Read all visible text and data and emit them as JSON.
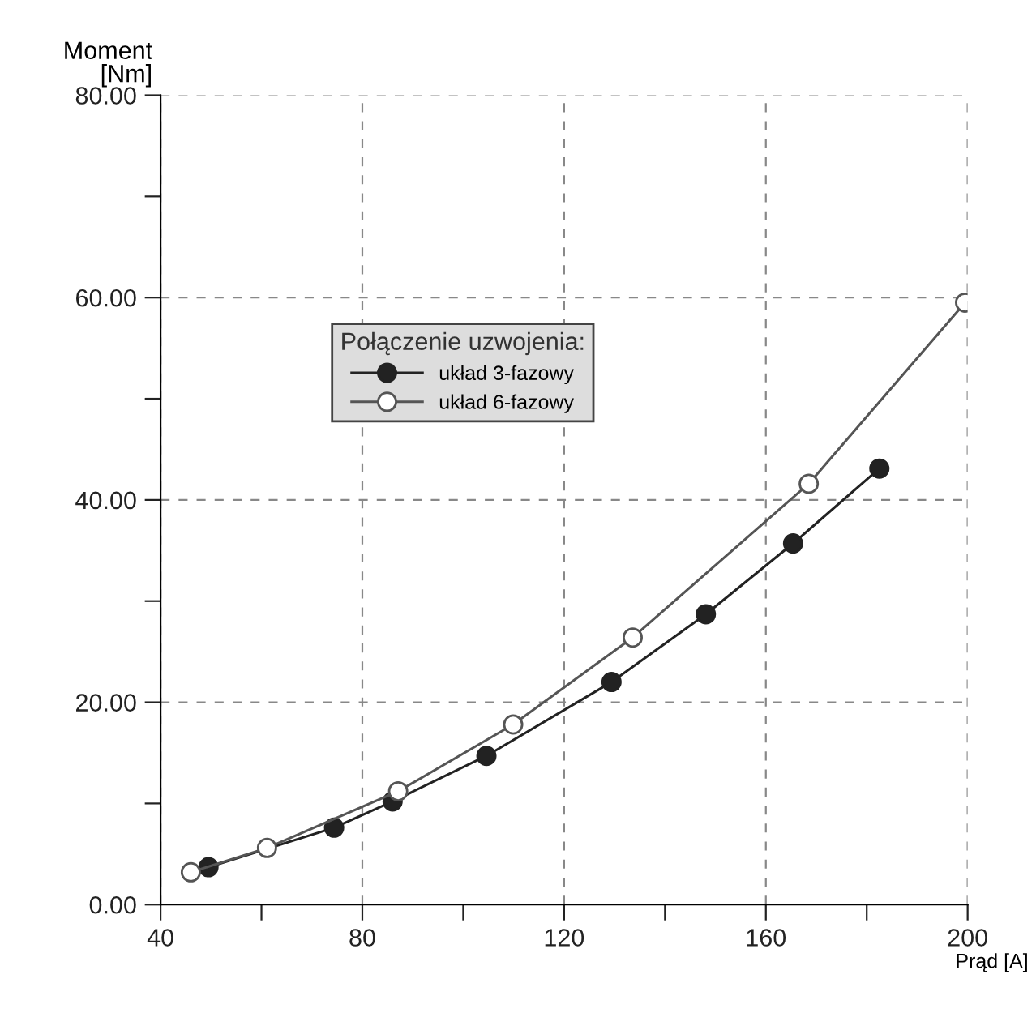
{
  "chart_data": {
    "type": "line",
    "xlabel": "Prąd [A]",
    "ylabel": "Moment\n[Nm]",
    "legend_title": "Połączenie uzwojenia:",
    "series": [
      {
        "name": "układ 3-fazowy",
        "color": "#222222",
        "x": [
          49.5,
          74.4,
          86.0,
          104.6,
          129.4,
          148.1,
          165.4,
          182.5
        ],
        "values": [
          3.7,
          7.6,
          10.2,
          14.7,
          22.0,
          28.7,
          35.7,
          43.1
        ]
      },
      {
        "name": "układ 6-fazowy",
        "color": "#555555",
        "x": [
          46.0,
          61.1,
          87.1,
          109.9,
          133.6,
          168.5,
          199.5
        ],
        "values": [
          3.2,
          5.6,
          11.2,
          17.8,
          26.4,
          41.6,
          59.5
        ]
      }
    ],
    "xlim": [
      40,
      200
    ],
    "ylim": [
      0,
      80
    ],
    "xticks": [
      40,
      {
        "value": 60,
        "label": null
      },
      80,
      {
        "value": 100,
        "label": null
      },
      120,
      {
        "value": 140,
        "label": null
      },
      160,
      {
        "value": 180,
        "label": null
      },
      200
    ],
    "yticks": [
      {
        "value": 0,
        "label": "0.00"
      },
      {
        "value": 10,
        "label": null
      },
      {
        "value": 20,
        "label": "20.00"
      },
      {
        "value": 30,
        "label": null
      },
      {
        "value": 40,
        "label": "40.00"
      },
      {
        "value": 50,
        "label": null
      },
      {
        "value": 60,
        "label": "60.00"
      },
      {
        "value": 70,
        "label": null
      },
      {
        "value": 80,
        "label": "80.00"
      }
    ],
    "grid": true,
    "legend": "top left",
    "marker": "circle",
    "line_style": "solid"
  }
}
